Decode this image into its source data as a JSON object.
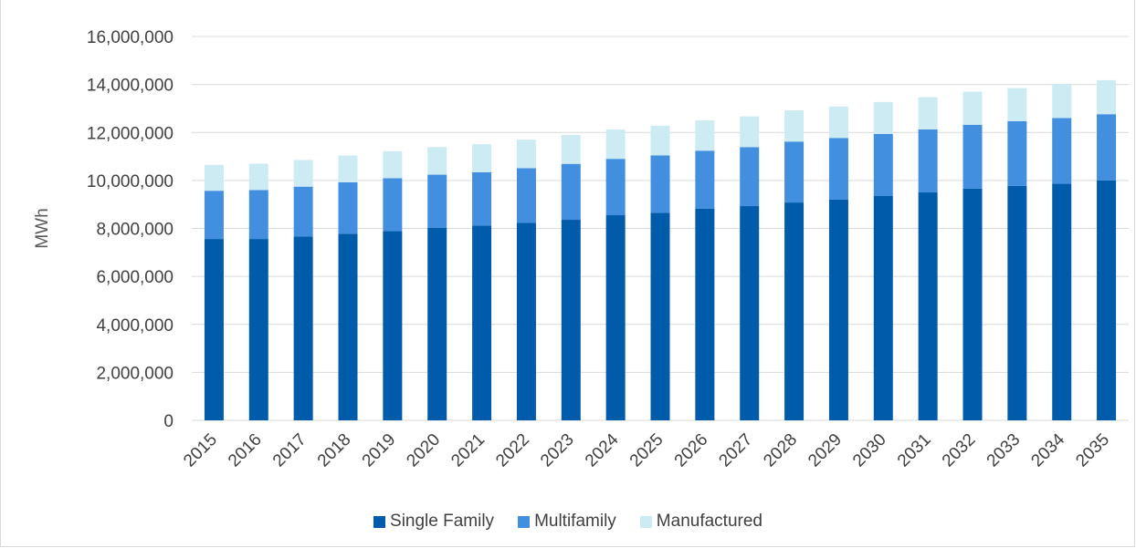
{
  "chart_data": {
    "type": "bar",
    "stacked": true,
    "title": "",
    "xlabel": "",
    "ylabel": "MWh",
    "ylim": [
      0,
      16000000
    ],
    "yticks": [
      "0",
      "2,000,000",
      "4,000,000",
      "6,000,000",
      "8,000,000",
      "10,000,000",
      "12,000,000",
      "14,000,000",
      "16,000,000"
    ],
    "ytick_values": [
      0,
      2000000,
      4000000,
      6000000,
      8000000,
      10000000,
      12000000,
      14000000,
      16000000
    ],
    "grid": true,
    "legend_position": "bottom",
    "categories": [
      "2015",
      "2016",
      "2017",
      "2018",
      "2019",
      "2020",
      "2021",
      "2022",
      "2023",
      "2024",
      "2025",
      "2026",
      "2027",
      "2028",
      "2029",
      "2030",
      "2031",
      "2032",
      "2033",
      "2034",
      "2035"
    ],
    "series": [
      {
        "name": "Single Family",
        "color": "#005BAA",
        "values": [
          7560000,
          7560000,
          7660000,
          7780000,
          7890000,
          8020000,
          8120000,
          8230000,
          8360000,
          8550000,
          8650000,
          8820000,
          8930000,
          9080000,
          9200000,
          9350000,
          9500000,
          9660000,
          9770000,
          9860000,
          10000000
        ]
      },
      {
        "name": "Multifamily",
        "color": "#418FDE",
        "values": [
          2010000,
          2040000,
          2080000,
          2140000,
          2200000,
          2220000,
          2220000,
          2280000,
          2330000,
          2350000,
          2390000,
          2420000,
          2460000,
          2540000,
          2570000,
          2590000,
          2630000,
          2660000,
          2700000,
          2740000,
          2760000
        ]
      },
      {
        "name": "Manufactured",
        "color": "#CDEBF3",
        "values": [
          1080000,
          1100000,
          1110000,
          1120000,
          1130000,
          1150000,
          1170000,
          1190000,
          1200000,
          1220000,
          1240000,
          1260000,
          1280000,
          1300000,
          1310000,
          1330000,
          1340000,
          1380000,
          1380000,
          1420000,
          1420000
        ]
      }
    ]
  }
}
